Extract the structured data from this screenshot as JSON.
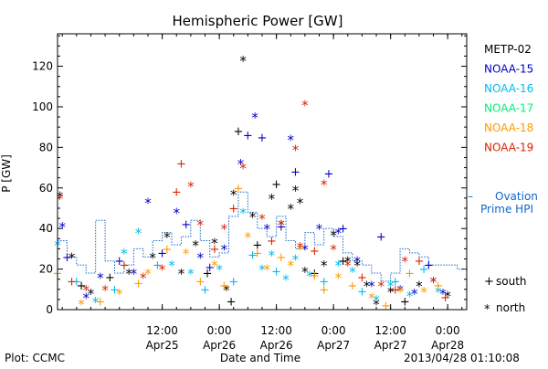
{
  "chart_data": {
    "type": "scatter",
    "title": "Hemispheric Power [GW]",
    "ylabel": "P [GW]",
    "xlabel": "Date and Time",
    "ylim": [
      0,
      136
    ],
    "xlim": [
      "2013-04-24 14:00",
      "2013-04-28 04:00"
    ],
    "y_ticks": [
      0,
      20,
      40,
      60,
      80,
      100,
      120
    ],
    "x_ticks": [
      {
        "t": "2013-04-25 12:00",
        "time": "12:00",
        "date": "Apr25"
      },
      {
        "t": "2013-04-26 00:00",
        "time": "0:00",
        "date": "Apr26"
      },
      {
        "t": "2013-04-26 12:00",
        "time": "12:00",
        "date": "Apr26"
      },
      {
        "t": "2013-04-27 00:00",
        "time": "0:00",
        "date": "Apr27"
      },
      {
        "t": "2013-04-27 12:00",
        "time": "12:00",
        "date": "Apr27"
      },
      {
        "t": "2013-04-28 00:00",
        "time": "0:00",
        "date": "Apr28"
      }
    ],
    "grid": false,
    "legend_position": "right",
    "markers": {
      "south": "+",
      "north": "*"
    },
    "marker_legend": [
      {
        "marker": "+",
        "label": "south"
      },
      {
        "marker": "*",
        "label": "north"
      }
    ],
    "series": [
      {
        "name": "METP-02",
        "color": "#000000",
        "points": [
          [
            "2013-04-24 14:30",
            56,
            "north"
          ],
          [
            "2013-04-24 17:00",
            26,
            "north"
          ],
          [
            "2013-04-24 19:00",
            12,
            "south"
          ],
          [
            "2013-04-24 21:00",
            8,
            "north"
          ],
          [
            "2013-04-25 01:00",
            16,
            "south"
          ],
          [
            "2013-04-25 05:00",
            18,
            "north"
          ],
          [
            "2013-04-25 10:00",
            26,
            "north"
          ],
          [
            "2013-04-25 13:00",
            36,
            "north"
          ],
          [
            "2013-04-25 16:00",
            18,
            "north"
          ],
          [
            "2013-04-25 19:00",
            32,
            "north"
          ],
          [
            "2013-04-25 21:30",
            18,
            "south"
          ],
          [
            "2013-04-25 23:00",
            33,
            "north"
          ],
          [
            "2013-04-26 01:30",
            10,
            "north"
          ],
          [
            "2013-04-26 02:30",
            4,
            "south"
          ],
          [
            "2013-04-26 03:00",
            57,
            "north"
          ],
          [
            "2013-04-26 04:00",
            88,
            "south"
          ],
          [
            "2013-04-26 05:00",
            123,
            "north"
          ],
          [
            "2013-04-26 07:00",
            46,
            "north"
          ],
          [
            "2013-04-26 08:00",
            32,
            "south"
          ],
          [
            "2013-04-26 11:00",
            55,
            "north"
          ],
          [
            "2013-04-26 12:00",
            62,
            "south"
          ],
          [
            "2013-04-26 13:00",
            42,
            "north"
          ],
          [
            "2013-04-26 15:00",
            50,
            "north"
          ],
          [
            "2013-04-26 16:00",
            59,
            "north"
          ],
          [
            "2013-04-26 17:00",
            53,
            "north"
          ],
          [
            "2013-04-26 18:00",
            19,
            "north"
          ],
          [
            "2013-04-26 20:00",
            18,
            "south"
          ],
          [
            "2013-04-26 22:00",
            22,
            "north"
          ],
          [
            "2013-04-27 00:00",
            37,
            "north"
          ],
          [
            "2013-04-27 02:00",
            24,
            "south"
          ],
          [
            "2013-04-27 03:00",
            24,
            "north"
          ],
          [
            "2013-04-27 05:00",
            22,
            "north"
          ],
          [
            "2013-04-27 07:00",
            12,
            "north"
          ],
          [
            "2013-04-27 09:00",
            3,
            "north"
          ],
          [
            "2013-04-27 12:00",
            9,
            "north"
          ],
          [
            "2013-04-27 15:00",
            4,
            "south"
          ],
          [
            "2013-04-27 18:00",
            12,
            "north"
          ],
          [
            "2013-04-27 21:00",
            14,
            "north"
          ],
          [
            "2013-04-28 00:00",
            7,
            "north"
          ]
        ]
      },
      {
        "name": "NOAA-15",
        "color": "#0000cc",
        "points": [
          [
            "2013-04-24 15:00",
            41,
            "north"
          ],
          [
            "2013-04-24 16:00",
            26,
            "south"
          ],
          [
            "2013-04-24 20:00",
            6,
            "north"
          ],
          [
            "2013-04-24 23:00",
            16,
            "north"
          ],
          [
            "2013-04-25 03:00",
            24,
            "south"
          ],
          [
            "2013-04-25 06:00",
            18,
            "north"
          ],
          [
            "2013-04-25 09:00",
            53,
            "north"
          ],
          [
            "2013-04-25 12:00",
            28,
            "south"
          ],
          [
            "2013-04-25 15:00",
            48,
            "north"
          ],
          [
            "2013-04-25 17:00",
            42,
            "south"
          ],
          [
            "2013-04-25 20:00",
            26,
            "north"
          ],
          [
            "2013-04-25 22:00",
            21,
            "south"
          ],
          [
            "2013-04-26 01:00",
            30,
            "north"
          ],
          [
            "2013-04-26 04:30",
            72,
            "north"
          ],
          [
            "2013-04-26 06:00",
            86,
            "south"
          ],
          [
            "2013-04-26 07:30",
            95,
            "north"
          ],
          [
            "2013-04-26 09:00",
            85,
            "south"
          ],
          [
            "2013-04-26 10:00",
            40,
            "north"
          ],
          [
            "2013-04-26 13:00",
            41,
            "south"
          ],
          [
            "2013-04-26 15:00",
            84,
            "north"
          ],
          [
            "2013-04-26 16:00",
            68,
            "south"
          ],
          [
            "2013-04-26 18:00",
            30,
            "north"
          ],
          [
            "2013-04-26 21:00",
            40,
            "north"
          ],
          [
            "2013-04-26 23:00",
            67,
            "south"
          ],
          [
            "2013-04-27 01:00",
            38,
            "north"
          ],
          [
            "2013-04-27 02:00",
            40,
            "south"
          ],
          [
            "2013-04-27 05:00",
            24,
            "north"
          ],
          [
            "2013-04-27 08:00",
            12,
            "north"
          ],
          [
            "2013-04-27 10:00",
            36,
            "south"
          ],
          [
            "2013-04-27 14:00",
            10,
            "north"
          ],
          [
            "2013-04-27 17:00",
            8,
            "north"
          ],
          [
            "2013-04-27 20:00",
            22,
            "south"
          ],
          [
            "2013-04-27 23:00",
            8,
            "north"
          ]
        ]
      },
      {
        "name": "NOAA-16",
        "color": "#00bbee",
        "points": [
          [
            "2013-04-24 14:00",
            32,
            "north"
          ],
          [
            "2013-04-24 18:00",
            14,
            "south"
          ],
          [
            "2013-04-24 22:00",
            4,
            "north"
          ],
          [
            "2013-04-25 02:00",
            10,
            "south"
          ],
          [
            "2013-04-25 04:00",
            28,
            "north"
          ],
          [
            "2013-04-25 07:00",
            38,
            "north"
          ],
          [
            "2013-04-25 11:00",
            22,
            "south"
          ],
          [
            "2013-04-25 14:00",
            22,
            "north"
          ],
          [
            "2013-04-25 18:00",
            18,
            "north"
          ],
          [
            "2013-04-25 21:00",
            10,
            "south"
          ],
          [
            "2013-04-26 00:00",
            20,
            "north"
          ],
          [
            "2013-04-26 03:00",
            14,
            "south"
          ],
          [
            "2013-04-26 05:00",
            48,
            "north"
          ],
          [
            "2013-04-26 07:00",
            27,
            "south"
          ],
          [
            "2013-04-26 09:00",
            20,
            "north"
          ],
          [
            "2013-04-26 11:00",
            27,
            "north"
          ],
          [
            "2013-04-26 12:00",
            19,
            "south"
          ],
          [
            "2013-04-26 14:00",
            15,
            "north"
          ],
          [
            "2013-04-26 16:00",
            25,
            "north"
          ],
          [
            "2013-04-26 19:00",
            17,
            "north"
          ],
          [
            "2013-04-26 22:00",
            14,
            "south"
          ],
          [
            "2013-04-27 01:00",
            22,
            "north"
          ],
          [
            "2013-04-27 04:00",
            19,
            "north"
          ],
          [
            "2013-04-27 06:00",
            9,
            "south"
          ],
          [
            "2013-04-27 09:00",
            5,
            "north"
          ],
          [
            "2013-04-27 12:00",
            12,
            "north"
          ],
          [
            "2013-04-27 13:00",
            14,
            "south"
          ],
          [
            "2013-04-27 16:00",
            7,
            "north"
          ],
          [
            "2013-04-27 19:00",
            20,
            "south"
          ],
          [
            "2013-04-27 22:00",
            9,
            "north"
          ]
        ]
      },
      {
        "name": "NOAA-17",
        "color": "#00ee77",
        "points": []
      },
      {
        "name": "NOAA-18",
        "color": "#ff9900",
        "points": [
          [
            "2013-04-24 14:00",
            18,
            "south"
          ],
          [
            "2013-04-24 19:00",
            3,
            "north"
          ],
          [
            "2013-04-24 23:00",
            4,
            "south"
          ],
          [
            "2013-04-25 03:00",
            8,
            "north"
          ],
          [
            "2013-04-25 07:00",
            13,
            "south"
          ],
          [
            "2013-04-25 09:00",
            18,
            "north"
          ],
          [
            "2013-04-25 13:00",
            30,
            "south"
          ],
          [
            "2013-04-25 17:00",
            28,
            "north"
          ],
          [
            "2013-04-25 20:00",
            14,
            "south"
          ],
          [
            "2013-04-25 23:00",
            22,
            "north"
          ],
          [
            "2013-04-26 01:00",
            12,
            "south"
          ],
          [
            "2013-04-26 04:00",
            60,
            "south"
          ],
          [
            "2013-04-26 06:00",
            36,
            "north"
          ],
          [
            "2013-04-26 08:00",
            28,
            "south"
          ],
          [
            "2013-04-26 10:00",
            20,
            "north"
          ],
          [
            "2013-04-26 13:00",
            26,
            "south"
          ],
          [
            "2013-04-26 15:00",
            22,
            "north"
          ],
          [
            "2013-04-26 17:00",
            30,
            "north"
          ],
          [
            "2013-04-26 20:00",
            17,
            "south"
          ],
          [
            "2013-04-26 22:00",
            10,
            "south"
          ],
          [
            "2013-04-27 01:00",
            16,
            "north"
          ],
          [
            "2013-04-27 04:00",
            12,
            "south"
          ],
          [
            "2013-04-27 08:00",
            6,
            "north"
          ],
          [
            "2013-04-27 11:00",
            2,
            "south"
          ],
          [
            "2013-04-27 14:00",
            9,
            "north"
          ],
          [
            "2013-04-27 16:00",
            18,
            "south"
          ],
          [
            "2013-04-27 19:00",
            9,
            "north"
          ],
          [
            "2013-04-27 22:00",
            12,
            "south"
          ]
        ]
      },
      {
        "name": "NOAA-19",
        "color": "#dd2200",
        "points": [
          [
            "2013-04-24 14:30",
            55,
            "north"
          ],
          [
            "2013-04-24 17:00",
            14,
            "south"
          ],
          [
            "2013-04-24 20:00",
            10,
            "north"
          ],
          [
            "2013-04-25 00:00",
            10,
            "north"
          ],
          [
            "2013-04-25 04:00",
            22,
            "south"
          ],
          [
            "2013-04-25 08:00",
            16,
            "north"
          ],
          [
            "2013-04-25 12:00",
            20,
            "north"
          ],
          [
            "2013-04-25 15:00",
            58,
            "south"
          ],
          [
            "2013-04-25 16:00",
            72,
            "south"
          ],
          [
            "2013-04-25 18:00",
            61,
            "north"
          ],
          [
            "2013-04-25 20:00",
            42,
            "north"
          ],
          [
            "2013-04-25 23:00",
            30,
            "south"
          ],
          [
            "2013-04-26 01:00",
            40,
            "north"
          ],
          [
            "2013-04-26 03:00",
            50,
            "south"
          ],
          [
            "2013-04-26 05:00",
            70,
            "north"
          ],
          [
            "2013-04-26 09:00",
            45,
            "north"
          ],
          [
            "2013-04-26 11:00",
            34,
            "south"
          ],
          [
            "2013-04-26 13:00",
            42,
            "north"
          ],
          [
            "2013-04-26 16:00",
            79,
            "north"
          ],
          [
            "2013-04-26 17:00",
            31,
            "north"
          ],
          [
            "2013-04-26 18:00",
            101,
            "north"
          ],
          [
            "2013-04-26 20:00",
            29,
            "south"
          ],
          [
            "2013-04-26 22:00",
            62,
            "north"
          ],
          [
            "2013-04-27 00:00",
            30,
            "north"
          ],
          [
            "2013-04-27 03:00",
            22,
            "north"
          ],
          [
            "2013-04-27 06:00",
            16,
            "south"
          ],
          [
            "2013-04-27 10:00",
            12,
            "north"
          ],
          [
            "2013-04-27 13:00",
            10,
            "south"
          ],
          [
            "2013-04-27 15:00",
            24,
            "north"
          ],
          [
            "2013-04-27 18:00",
            24,
            "south"
          ],
          [
            "2013-04-27 21:00",
            14,
            "north"
          ],
          [
            "2013-04-27 23:30",
            6,
            "south"
          ]
        ]
      }
    ],
    "ovation": {
      "name_line1": "Ovation",
      "name_line2": "Prime HPI",
      "color": "#1166cc",
      "legend_marker": "–",
      "steps": [
        [
          "2013-04-24 14:00",
          34
        ],
        [
          "2013-04-24 16:00",
          26
        ],
        [
          "2013-04-24 18:00",
          22
        ],
        [
          "2013-04-24 20:00",
          18
        ],
        [
          "2013-04-24 22:00",
          44
        ],
        [
          "2013-04-25 00:00",
          24
        ],
        [
          "2013-04-25 02:00",
          18
        ],
        [
          "2013-04-25 04:00",
          22
        ],
        [
          "2013-04-25 06:00",
          30
        ],
        [
          "2013-04-25 08:00",
          26
        ],
        [
          "2013-04-25 10:00",
          34
        ],
        [
          "2013-04-25 12:00",
          38
        ],
        [
          "2013-04-25 14:00",
          32
        ],
        [
          "2013-04-25 16:00",
          36
        ],
        [
          "2013-04-25 18:00",
          44
        ],
        [
          "2013-04-25 20:00",
          34
        ],
        [
          "2013-04-25 22:00",
          26
        ],
        [
          "2013-04-26 00:00",
          28
        ],
        [
          "2013-04-26 02:00",
          46
        ],
        [
          "2013-04-26 04:00",
          58
        ],
        [
          "2013-04-26 06:00",
          48
        ],
        [
          "2013-04-26 08:00",
          40
        ],
        [
          "2013-04-26 10:00",
          36
        ],
        [
          "2013-04-26 12:00",
          46
        ],
        [
          "2013-04-26 14:00",
          34
        ],
        [
          "2013-04-26 16:00",
          30
        ],
        [
          "2013-04-26 18:00",
          38
        ],
        [
          "2013-04-26 20:00",
          32
        ],
        [
          "2013-04-26 22:00",
          40
        ],
        [
          "2013-04-27 00:00",
          36
        ],
        [
          "2013-04-27 02:00",
          28
        ],
        [
          "2013-04-27 04:00",
          24
        ],
        [
          "2013-04-27 06:00",
          22
        ],
        [
          "2013-04-27 08:00",
          18
        ],
        [
          "2013-04-27 10:00",
          14
        ],
        [
          "2013-04-27 12:00",
          18
        ],
        [
          "2013-04-27 14:00",
          30
        ],
        [
          "2013-04-27 16:00",
          28
        ],
        [
          "2013-04-27 18:00",
          26
        ],
        [
          "2013-04-27 20:00",
          22
        ],
        [
          "2013-04-27 22:00",
          22
        ],
        [
          "2013-04-28 00:00",
          22
        ],
        [
          "2013-04-28 02:00",
          20
        ]
      ]
    }
  },
  "footer": {
    "plot_credit": "Plot: CCMC",
    "timestamp": "2013/04/28 01:10:08"
  }
}
